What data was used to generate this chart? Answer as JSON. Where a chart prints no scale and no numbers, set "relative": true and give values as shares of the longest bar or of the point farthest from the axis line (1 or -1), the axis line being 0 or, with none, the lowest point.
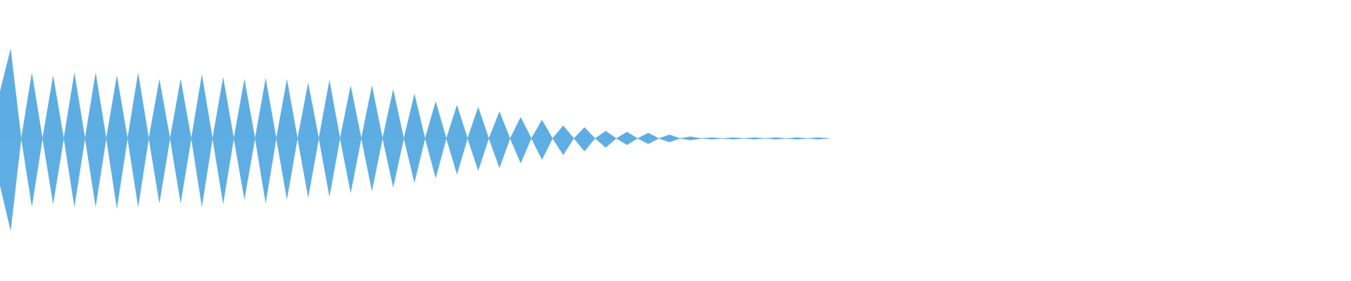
{
  "chart_data": {
    "type": "area",
    "relative": true,
    "categories": [
      null,
      null,
      null,
      null,
      null,
      null,
      null,
      null,
      null,
      null,
      null,
      null,
      null,
      null,
      null,
      null,
      null,
      null,
      null,
      null,
      null,
      null,
      null,
      null,
      null,
      null,
      null,
      null,
      null,
      null,
      null,
      null,
      null,
      null,
      null,
      null,
      null,
      null,
      null,
      null,
      null,
      null,
      null,
      null,
      null,
      null,
      null,
      null,
      null,
      null,
      null,
      null,
      null,
      null,
      null,
      null,
      null,
      null,
      null,
      null,
      null,
      null,
      null,
      null,
      null,
      null,
      null,
      null,
      null,
      null,
      null,
      null,
      null,
      null,
      null,
      null,
      null,
      null,
      null
    ],
    "series": [
      {
        "color": "#5dade2",
        "values": [
          0.51,
          0.97,
          0,
          0.71,
          0,
          0.68,
          0,
          0.71,
          0,
          0.71,
          0,
          0.68,
          0,
          0.71,
          0,
          0.64,
          0,
          0.64,
          0,
          0.69,
          0,
          0.66,
          0,
          0.64,
          0,
          0.65,
          0,
          0.64,
          0,
          0.6,
          0,
          0.63,
          0,
          0.57,
          0,
          0.57,
          0,
          0.53,
          0,
          0.48,
          0,
          0.4,
          0,
          0.36,
          0,
          0.34,
          0,
          0.29,
          0,
          0.23,
          0,
          0.2,
          0,
          0.14,
          0,
          0.12,
          0,
          0.08,
          0,
          0.07,
          0,
          0.06,
          0,
          0.04,
          0,
          0.02,
          0,
          0.01,
          0,
          0.01,
          0,
          0.01,
          0,
          0.01,
          0,
          0.01,
          0,
          0.01,
          0
        ]
      },
      {
        "color": "#5eaee3",
        "values": [
          -0.51,
          -1,
          0,
          -0.74,
          0,
          -0.71,
          0,
          -0.74,
          0,
          -0.74,
          0,
          -0.76,
          0,
          -0.74,
          0,
          -0.7,
          0,
          -0.7,
          0,
          -0.74,
          0,
          -0.71,
          0,
          -0.66,
          0,
          -0.7,
          0,
          -0.66,
          0,
          -0.64,
          0,
          -0.63,
          0,
          -0.59,
          0,
          -0.57,
          0,
          -0.53,
          0,
          -0.48,
          0,
          -0.43,
          0,
          -0.39,
          0,
          -0.35,
          0,
          -0.32,
          0,
          -0.27,
          0,
          -0.23,
          0,
          -0.18,
          0,
          -0.14,
          0,
          -0.1,
          0,
          -0.07,
          0,
          -0.06,
          0,
          -0.04,
          0,
          -0.02,
          0,
          -0.01,
          0,
          -0.01,
          0,
          -0.01,
          0,
          -0.01,
          0,
          -0.01,
          0,
          -0.01,
          0
        ]
      }
    ]
  }
}
